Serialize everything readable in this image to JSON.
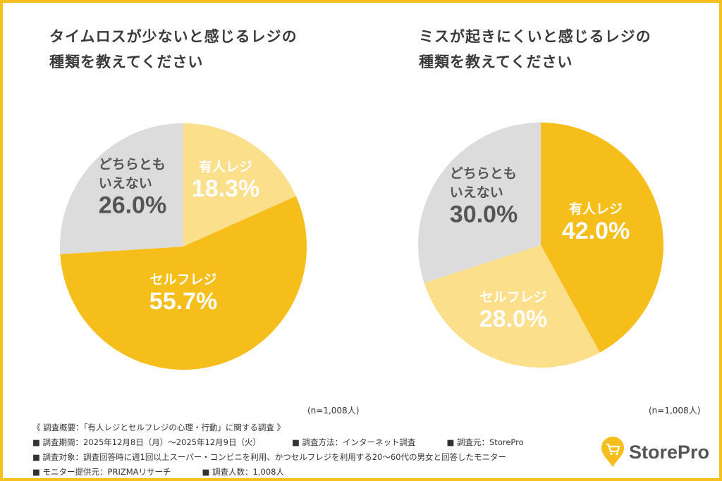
{
  "colors": {
    "dark": "#F6BE1A",
    "light": "#FBDF8A",
    "gray": "#DCDCDC",
    "frame": "#F6C01F"
  },
  "chart_data": [
    {
      "type": "pie",
      "title": "タイムロスが少ないと感じるレジの種類を教えてください",
      "title_lines": [
        "タイムロスが少ないと感じるレジの",
        "種類を教えてください"
      ],
      "slices": [
        {
          "label": "有人レジ",
          "value": 18.3,
          "display": "18.3%",
          "color": "light"
        },
        {
          "label": "セルフレジ",
          "value": 55.7,
          "display": "55.7%",
          "color": "dark"
        },
        {
          "label": "どちらともいえない",
          "label_lines": [
            "どちらとも",
            "いえない"
          ],
          "value": 26.0,
          "display": "26.0%",
          "color": "gray"
        }
      ],
      "note": "(n=1,008人)"
    },
    {
      "type": "pie",
      "title": "ミスが起きにくいと感じるレジの種類を教えてください",
      "title_lines": [
        "ミスが起きにくいと感じるレジの",
        "種類を教えてください"
      ],
      "slices": [
        {
          "label": "有人レジ",
          "value": 42.0,
          "display": "42.0%",
          "color": "dark"
        },
        {
          "label": "セルフレジ",
          "value": 28.0,
          "display": "28.0%",
          "color": "light"
        },
        {
          "label": "どちらともいえない",
          "label_lines": [
            "どちらとも",
            "いえない"
          ],
          "value": 30.0,
          "display": "30.0%",
          "color": "gray"
        }
      ],
      "note": "(n=1,008人)"
    }
  ],
  "footer": {
    "overview": "《 調査概要：「有人レジとセルフレジの心理・行動」に関する調査 》",
    "period": "■ 調査期間：2025年12月8日（月）～2025年12月9日（火）",
    "method": "■ 調査方法：インターネット調査",
    "source": "■ 調査元：StorePro",
    "target": "■ 調査対象：調査回答時に週1回以上スーパー・コンビニを利用、かつセルフレジを利用する20～60代の男女と回答したモニター",
    "provider": "■ モニター提供元：PRIZMAリサーチ",
    "count": "■ 調査人数：1,008人"
  },
  "logo": {
    "text": "StorePro",
    "icon": "shopping-cart-pin-icon"
  }
}
